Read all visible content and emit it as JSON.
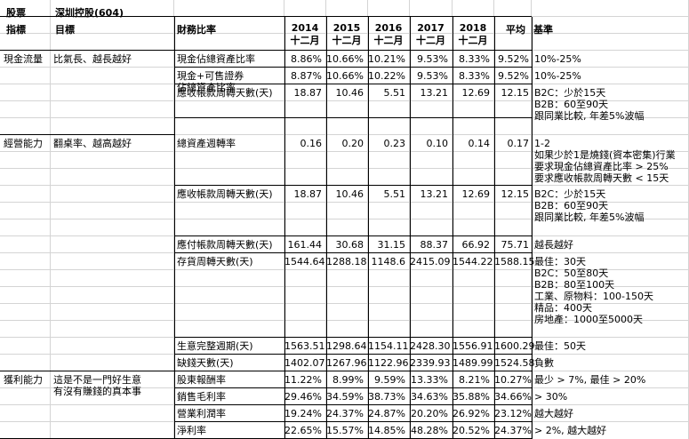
{
  "header": {
    "label_stock": "股票",
    "company": "深圳控股(604)"
  },
  "columns": {
    "indicator": "指標",
    "goal": "目標",
    "ratio": "財務比率",
    "years": [
      {
        "year": "2014",
        "sub": "十二月"
      },
      {
        "year": "2015",
        "sub": "十二月"
      },
      {
        "year": "2016",
        "sub": "十二月"
      },
      {
        "year": "2017",
        "sub": "十二月"
      },
      {
        "year": "2018",
        "sub": "十二月"
      }
    ],
    "avg": "平均",
    "benchmark": "基準"
  },
  "sections": [
    {
      "indicator": "現金流量",
      "goal": [
        "比氣長、越長越好"
      ],
      "rows": [
        {
          "ratio": [
            "現金佔總資產比率"
          ],
          "values": [
            "8.86%",
            "10.66%",
            "10.21%",
            "9.53%",
            "8.33%"
          ],
          "avg": "9.52%",
          "benchmark": [
            "10%-25%"
          ]
        },
        {
          "ratio": [
            "現金+可售證券",
            "佔總資產比率"
          ],
          "values": [
            "8.87%",
            "10.66%",
            "10.22%",
            "9.53%",
            "8.33%"
          ],
          "avg": "9.52%",
          "benchmark": [
            "10%-25%"
          ]
        },
        {
          "ratio": [
            "應收帳款周轉天數(天)"
          ],
          "values": [
            "18.87",
            "10.46",
            "5.51",
            "13.21",
            "12.69"
          ],
          "avg": "12.15",
          "benchmark": [
            "B2C：少於15天",
            "B2B：60至90天",
            "跟同業比較, 年差5%波幅"
          ]
        }
      ]
    },
    {
      "indicator": "經營能力",
      "goal": [
        "翻桌率、越高越好"
      ],
      "rows": [
        {
          "ratio": [
            "總資產週轉率"
          ],
          "values": [
            "0.16",
            "0.20",
            "0.23",
            "0.10",
            "0.14"
          ],
          "avg": "0.17",
          "benchmark": [
            "1-2",
            "如果少於1是燒錢(資本密集)行業",
            "要求現金佔總資產比率 > 25%",
            "要求應收帳款周轉天數 < 15天"
          ]
        },
        {
          "ratio": [
            "應收帳款周轉天數(天)"
          ],
          "values": [
            "18.87",
            "10.46",
            "5.51",
            "13.21",
            "12.69"
          ],
          "avg": "12.15",
          "benchmark": [
            "B2C：少於15天",
            "B2B：60至90天",
            "跟同業比較, 年差5%波幅"
          ]
        },
        {
          "ratio": [
            "應付帳款周轉天數(天)"
          ],
          "values": [
            "161.44",
            "30.68",
            "31.15",
            "88.37",
            "66.92"
          ],
          "avg": "75.71",
          "benchmark": [
            "越長越好"
          ]
        },
        {
          "ratio": [
            "存貨周轉天數(天)"
          ],
          "values": [
            "1544.64",
            "1288.18",
            "1148.6",
            "2415.09",
            "1544.22"
          ],
          "avg": "1588.15",
          "benchmark": [
            "最佳：30天",
            "B2C：50至80天",
            "B2B：80至100天",
            "工業、原物料：100-150天",
            "精品：400天",
            "房地產：1000至5000天"
          ]
        },
        {
          "ratio": [
            "生意完整週期(天)"
          ],
          "values": [
            "1563.51",
            "1298.64",
            "1154.11",
            "2428.30",
            "1556.91"
          ],
          "avg": "1600.29",
          "benchmark": [
            "最佳：50天"
          ]
        },
        {
          "ratio": [
            "缺錢天數(天)"
          ],
          "values": [
            "1402.07",
            "1267.96",
            "1122.96",
            "2339.93",
            "1489.99"
          ],
          "avg": "1524.58",
          "benchmark": [
            "負數"
          ]
        }
      ]
    },
    {
      "indicator": "獲利能力",
      "goal": [
        "這是不是一門好生意",
        "有沒有賺錢的真本事"
      ],
      "rows": [
        {
          "ratio": [
            "股東報酬率"
          ],
          "values": [
            "11.22%",
            "8.99%",
            "9.59%",
            "13.33%",
            "8.21%"
          ],
          "avg": "10.27%",
          "benchmark": [
            "最少 > 7%, 最佳 > 20%"
          ]
        },
        {
          "ratio": [
            "銷售毛利率"
          ],
          "values": [
            "29.46%",
            "34.59%",
            "38.73%",
            "34.63%",
            "35.88%"
          ],
          "avg": "34.66%",
          "benchmark": [
            "> 30%"
          ]
        },
        {
          "ratio": [
            "營業利潤率"
          ],
          "values": [
            "19.24%",
            "24.37%",
            "24.87%",
            "20.20%",
            "26.92%"
          ],
          "avg": "23.12%",
          "benchmark": [
            "越大越好"
          ]
        },
        {
          "ratio": [
            "淨利率"
          ],
          "values": [
            "22.65%",
            "15.57%",
            "14.85%",
            "48.28%",
            "20.52%"
          ],
          "avg": "24.37%",
          "benchmark": [
            "> 2%, 越大越好"
          ]
        }
      ]
    }
  ]
}
